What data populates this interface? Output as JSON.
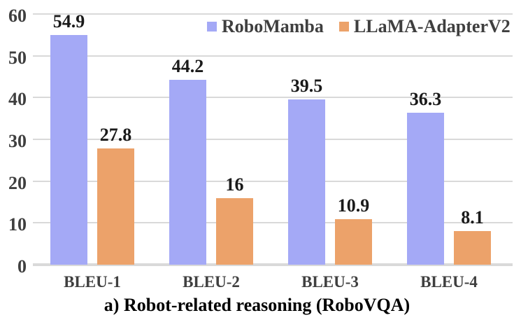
{
  "chart_data": {
    "type": "bar",
    "title": "a) Robot-related reasoning (RoboVQA)",
    "xlabel": "",
    "ylabel": "",
    "categories": [
      "BLEU-1",
      "BLEU-2",
      "BLEU-3",
      "BLEU-4"
    ],
    "series": [
      {
        "name": "RoboMamba",
        "color": "#a4a9f6",
        "values": [
          54.9,
          44.2,
          39.5,
          36.3
        ]
      },
      {
        "name": "LLaMA-AdapterV2",
        "color": "#eca26a",
        "values": [
          27.8,
          16,
          10.9,
          8.1
        ]
      }
    ],
    "ylim": [
      0,
      60
    ],
    "yticks": [
      0,
      10,
      20,
      30,
      40,
      50,
      60
    ],
    "grid": true,
    "legend_position": "top"
  },
  "colors": {
    "gridline": "#d9d9d9",
    "axis_text": "#3f3f3f",
    "data_label_text": "#1a1a1a",
    "caption_text": "#000000",
    "background": "#ffffff"
  }
}
